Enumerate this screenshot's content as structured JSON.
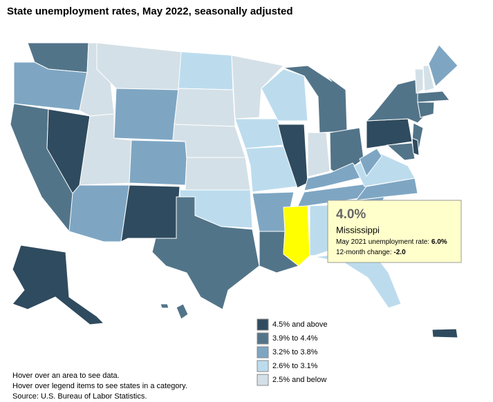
{
  "title": "State unemployment rates, May 2022, seasonally adjusted",
  "tooltip": {
    "value": "4.0%",
    "state": "Mississippi",
    "line1_label": "May 2021 unemployment rate:",
    "line1_value": "6.0%",
    "line2_label": "12-month change:",
    "line2_value": "-2.0",
    "highlight_color": "#ffff00"
  },
  "legend": [
    {
      "label": "4.5% and above",
      "color": "#2f4b5f"
    },
    {
      "label": "3.9% to 4.4%",
      "color": "#527489"
    },
    {
      "label": "3.2% to 3.8%",
      "color": "#7ea6c3"
    },
    {
      "label": "2.6% to 3.1%",
      "color": "#bcdcee"
    },
    {
      "label": "2.5% and below",
      "color": "#d4e0e7"
    }
  ],
  "notes": [
    "Hover over an area to see data.",
    "Hover over legend items to see states in a category."
  ],
  "source": "Source: U.S. Bureau of Labor Statistics."
}
